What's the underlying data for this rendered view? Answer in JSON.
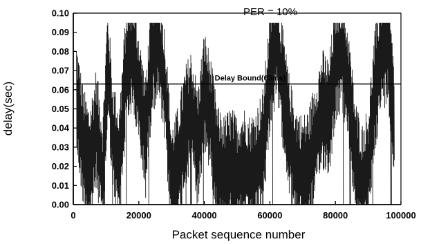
{
  "chart_data": {
    "type": "line",
    "title": "PER = 10%",
    "xlabel": "Packet sequence number",
    "ylabel": "delay(sec)",
    "xlim": [
      0,
      100000
    ],
    "ylim": [
      0.0,
      0.1
    ],
    "x_ticks": [
      "0",
      "20000",
      "40000",
      "60000",
      "80000",
      "100000"
    ],
    "y_ticks": [
      "0.00",
      "0.01",
      "0.02",
      "0.03",
      "0.04",
      "0.05",
      "0.06",
      "0.07",
      "0.08",
      "0.09",
      "0.10"
    ],
    "grid": false,
    "annotations": [
      {
        "text": "Delay Bound(63ms)",
        "y": 0.063
      }
    ],
    "reference_lines": [
      {
        "name": "Delay Bound(63ms)",
        "y": 0.063
      }
    ],
    "series": [
      {
        "x": [
          1000,
          3000,
          5000,
          7000,
          9000,
          10500,
          12000,
          14000,
          16000,
          18000,
          20000,
          22000,
          24000,
          26000,
          28000,
          30000,
          32000,
          34000,
          36000,
          38000,
          40000,
          42000,
          44000,
          46000,
          48000,
          50000,
          52000,
          54000,
          56000,
          58000,
          60000,
          62000,
          64000,
          66000,
          68000,
          70000,
          72000,
          74000,
          76000,
          78000,
          80000,
          82000,
          84000,
          86000,
          88000,
          90000,
          92000,
          94000,
          96000,
          98000
        ],
        "values": [
          0.055,
          0.03,
          0.02,
          0.04,
          0.015,
          0.075,
          0.035,
          0.02,
          0.07,
          0.08,
          0.06,
          0.035,
          0.08,
          0.085,
          0.06,
          0.01,
          0.02,
          0.04,
          0.05,
          0.03,
          0.06,
          0.045,
          0.02,
          0.015,
          0.02,
          0.015,
          0.02,
          0.015,
          0.02,
          0.03,
          0.07,
          0.085,
          0.06,
          0.035,
          0.02,
          0.015,
          0.02,
          0.035,
          0.05,
          0.045,
          0.075,
          0.08,
          0.06,
          0.025,
          0.01,
          0.02,
          0.06,
          0.08,
          0.085,
          0.04
        ]
      }
    ]
  }
}
